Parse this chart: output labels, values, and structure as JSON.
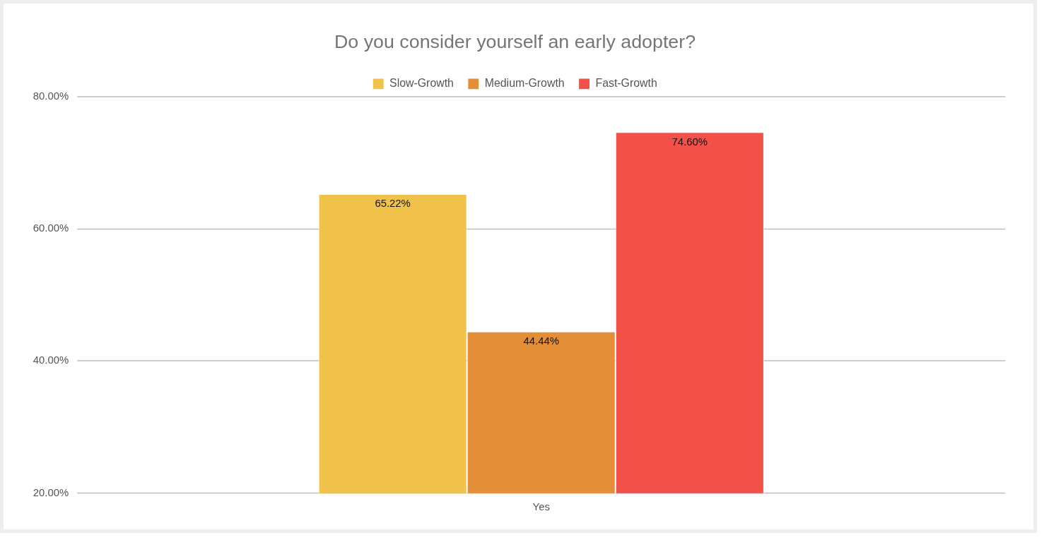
{
  "chart_data": {
    "type": "bar",
    "title": "Do you consider yourself an early adopter?",
    "categories": [
      "Yes"
    ],
    "series": [
      {
        "name": "Slow-Growth",
        "color": "#f1c24a",
        "values": [
          65.22
        ],
        "value_labels": [
          "65.22%"
        ]
      },
      {
        "name": "Medium-Growth",
        "color": "#e48f37",
        "values": [
          44.44
        ],
        "value_labels": [
          "44.44%"
        ]
      },
      {
        "name": "Fast-Growth",
        "color": "#f2514a",
        "values": [
          74.6
        ],
        "value_labels": [
          "74.60%"
        ]
      }
    ],
    "ylim": [
      20,
      80
    ],
    "yticks": [
      {
        "value": 20,
        "label": "20.00%"
      },
      {
        "value": 40,
        "label": "40.00%"
      },
      {
        "value": 60,
        "label": "60.00%"
      },
      {
        "value": 80,
        "label": "80.00%"
      }
    ],
    "grid": "y",
    "legend": "top"
  }
}
